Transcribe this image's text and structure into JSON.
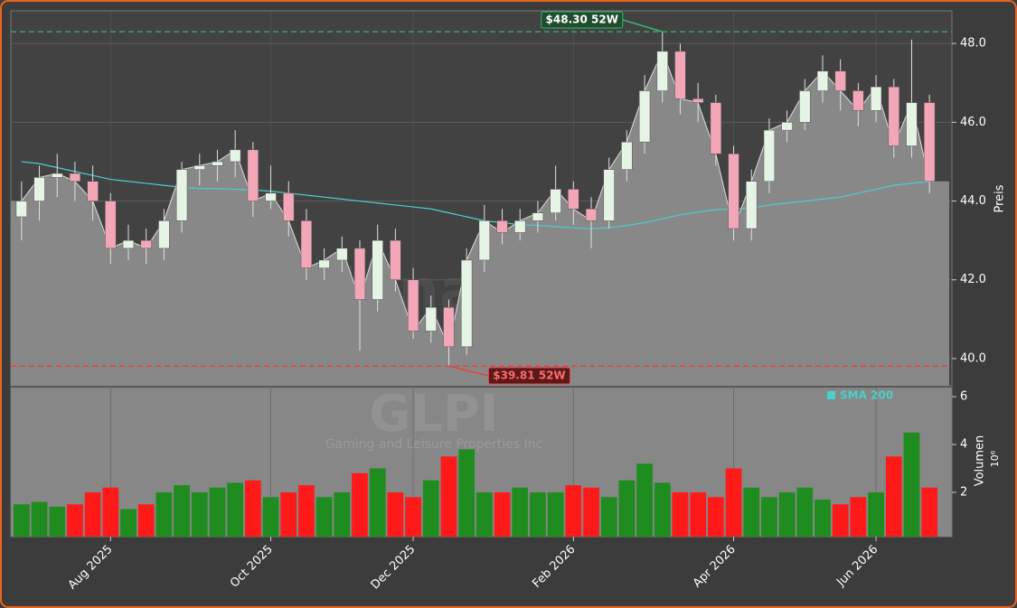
{
  "chart_data": {
    "type": "candlestick",
    "watermark": "forexsignale.trade",
    "ticker": "GLPI",
    "company": "Gaming and Leisure Properties Inc",
    "ylabel": "Preis",
    "categories": [
      null,
      null,
      null,
      null,
      null,
      "Aug 2025",
      null,
      null,
      null,
      null,
      null,
      null,
      null,
      null,
      "Oct 2025",
      null,
      null,
      null,
      null,
      null,
      null,
      null,
      "Dec 2025",
      null,
      null,
      null,
      null,
      null,
      null,
      null,
      null,
      "Feb 2026",
      null,
      null,
      null,
      null,
      null,
      null,
      null,
      null,
      "Apr 2026",
      null,
      null,
      null,
      null,
      null,
      null,
      null,
      "Jun 2026",
      null,
      null,
      null
    ],
    "open": [
      43.6,
      44.0,
      44.6,
      44.7,
      44.5,
      44.0,
      42.8,
      43.0,
      42.8,
      43.5,
      44.8,
      44.9,
      45.0,
      45.3,
      44.0,
      44.2,
      43.5,
      42.3,
      42.5,
      42.8,
      41.5,
      43.0,
      42.0,
      40.7,
      41.3,
      40.3,
      42.5,
      43.5,
      43.2,
      43.5,
      43.7,
      44.3,
      43.8,
      43.5,
      44.8,
      45.5,
      46.8,
      47.8,
      46.6,
      46.5,
      45.2,
      43.3,
      44.5,
      45.8,
      46.0,
      46.8,
      47.3,
      46.8,
      46.3,
      46.9,
      45.4,
      46.5
    ],
    "high": [
      44.5,
      44.9,
      45.2,
      45.0,
      44.9,
      44.2,
      43.4,
      43.3,
      43.8,
      45.0,
      45.2,
      45.3,
      45.8,
      45.5,
      44.9,
      44.5,
      43.8,
      42.8,
      43.1,
      43.0,
      43.4,
      43.3,
      42.3,
      41.6,
      41.5,
      42.8,
      43.9,
      43.8,
      43.8,
      44.0,
      44.9,
      44.5,
      44.1,
      45.1,
      45.8,
      47.2,
      48.3,
      48.0,
      47.0,
      46.7,
      45.4,
      44.8,
      46.1,
      46.3,
      47.1,
      47.7,
      47.6,
      47.0,
      47.2,
      47.1,
      48.1,
      46.7
    ],
    "low": [
      43.0,
      43.5,
      44.1,
      44.0,
      43.5,
      42.4,
      42.5,
      42.4,
      42.5,
      43.2,
      44.4,
      44.5,
      44.6,
      43.6,
      43.8,
      43.1,
      42.0,
      42.0,
      42.2,
      40.2,
      41.2,
      41.7,
      40.5,
      40.4,
      39.81,
      40.1,
      42.2,
      42.9,
      43.0,
      43.2,
      43.5,
      43.4,
      42.8,
      43.3,
      44.5,
      45.2,
      46.5,
      46.2,
      46.0,
      44.9,
      43.0,
      43.0,
      44.2,
      45.5,
      45.8,
      46.5,
      46.3,
      45.9,
      46.0,
      45.1,
      45.1,
      44.2
    ],
    "close": [
      44.0,
      44.6,
      44.7,
      44.5,
      44.0,
      42.8,
      43.0,
      42.8,
      43.5,
      44.8,
      44.9,
      45.0,
      45.3,
      44.0,
      44.2,
      43.5,
      42.3,
      42.5,
      42.8,
      41.5,
      43.0,
      42.0,
      40.7,
      41.3,
      40.3,
      42.5,
      43.5,
      43.2,
      43.5,
      43.7,
      44.3,
      43.8,
      43.5,
      44.8,
      45.5,
      46.8,
      47.8,
      46.6,
      46.5,
      45.2,
      43.3,
      44.5,
      45.8,
      46.0,
      46.8,
      47.3,
      46.8,
      46.3,
      46.9,
      45.4,
      46.5,
      44.5
    ],
    "up_color": "#e6f4e6",
    "down_color": "#f2a6b8",
    "area_color": "#888888",
    "sma": {
      "name": "SMA 200",
      "color": "#48d1cc",
      "values": [
        45.0,
        44.95,
        44.85,
        44.75,
        44.65,
        44.55,
        44.5,
        44.45,
        44.4,
        44.35,
        44.32,
        44.32,
        44.3,
        44.28,
        44.25,
        44.2,
        44.15,
        44.1,
        44.05,
        44.0,
        43.95,
        43.9,
        43.85,
        43.8,
        43.7,
        43.6,
        43.5,
        43.45,
        43.4,
        43.38,
        43.35,
        43.32,
        43.3,
        43.32,
        43.38,
        43.45,
        43.55,
        43.65,
        43.72,
        43.78,
        43.8,
        43.82,
        43.9,
        43.95,
        44.0,
        44.05,
        44.1,
        44.2,
        44.3,
        44.4,
        44.45,
        44.5
      ]
    },
    "ylim": [
      39.31,
      48.83
    ],
    "yticks": [
      {
        "value": 40,
        "label": "40.0"
      },
      {
        "value": 42,
        "label": "42.0"
      },
      {
        "value": 44,
        "label": "44.0"
      },
      {
        "value": 46,
        "label": "46.0"
      },
      {
        "value": 48,
        "label": "48.0"
      }
    ],
    "grid": true,
    "annotations": [
      {
        "value": 48.3,
        "label": "$48.30 52W",
        "color": "#3cb371"
      },
      {
        "value": 39.81,
        "label": "$39.81 52W",
        "color": "#e84040"
      }
    ],
    "volume": {
      "ylabel": "Volumen",
      "unit": "10⁶",
      "up_color": "#1e8c1e",
      "down_color": "#ff1a1a",
      "values": [
        1.5,
        1.6,
        1.4,
        1.5,
        2.0,
        2.2,
        1.3,
        1.5,
        2.0,
        2.3,
        2.0,
        2.2,
        2.4,
        2.5,
        1.8,
        2.0,
        2.3,
        1.8,
        2.0,
        2.8,
        3.0,
        2.0,
        1.8,
        2.5,
        3.5,
        3.8,
        2.0,
        2.0,
        2.2,
        2.0,
        2.0,
        2.3,
        2.2,
        1.8,
        2.5,
        3.2,
        2.4,
        2.0,
        2.0,
        1.8,
        3.0,
        2.2,
        1.8,
        2.0,
        2.2,
        1.7,
        1.5,
        1.8,
        2.0,
        3.5,
        4.5,
        2.2
      ],
      "ylim": [
        0.15,
        6.38
      ],
      "yticks": [
        2,
        4,
        6
      ]
    }
  }
}
